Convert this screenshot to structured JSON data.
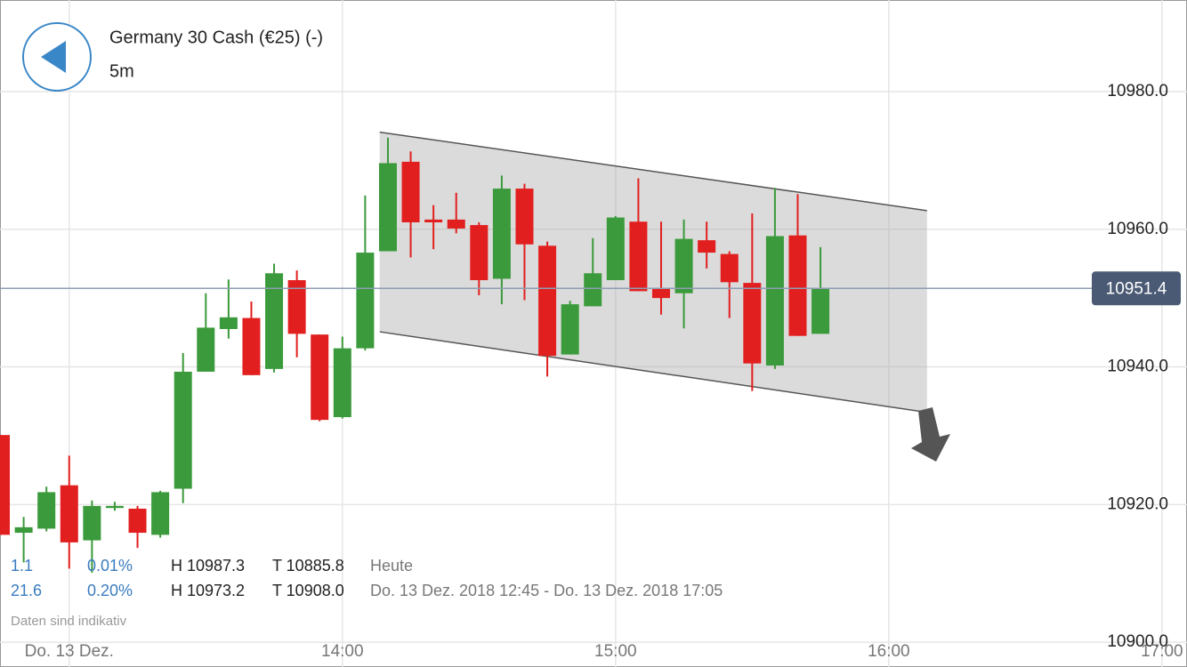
{
  "chart_data": {
    "type": "candlestick",
    "title": "Germany 30 Cash (€25) (-)",
    "subtitle": "5m",
    "x": [
      765,
      770,
      775,
      780,
      785,
      790,
      795,
      800,
      805,
      810,
      815,
      820,
      825,
      830,
      835,
      840,
      845,
      850,
      855,
      860,
      865,
      870,
      875,
      880,
      885,
      890,
      895,
      900,
      905,
      910,
      915,
      920,
      925,
      930,
      935,
      940,
      945
    ],
    "open": [
      10930.1,
      10915.9,
      10916.5,
      10922.8,
      10914.8,
      10919.5,
      10919.4,
      10915.6,
      10922.3,
      10939.3,
      10945.5,
      10947.1,
      10939.7,
      10952.6,
      10944.7,
      10932.7,
      10942.7,
      10956.8,
      10969.8,
      10961.4,
      10961.4,
      10960.6,
      10952.8,
      10965.9,
      10957.6,
      10941.8,
      10948.8,
      10952.6,
      10961.1,
      10951.5,
      10950.7,
      10958.4,
      10956.4,
      10952.2,
      10940.2,
      10959.1,
      10944.8
    ],
    "high": [
      10930.1,
      10918.2,
      10922.6,
      10927.1,
      10920.6,
      10920.4,
      10919.8,
      10922.0,
      10942.0,
      10950.7,
      10952.7,
      10949.5,
      10955.0,
      10954.0,
      10944.7,
      10944.4,
      10964.9,
      10973.3,
      10971.3,
      10963.5,
      10965.3,
      10961.0,
      10967.8,
      10966.6,
      10958.2,
      10949.6,
      10958.7,
      10961.9,
      10967.4,
      10961.1,
      10961.4,
      10961.1,
      10956.8,
      10962.3,
      10966.0,
      10965.1,
      10957.4
    ],
    "low": [
      10915.6,
      10911.6,
      10916.1,
      10910.7,
      10910.1,
      10919.1,
      10913.7,
      10915.2,
      10920.2,
      10939.3,
      10944.1,
      10938.8,
      10939.2,
      10941.4,
      10932.1,
      10932.5,
      10942.4,
      10956.8,
      10955.9,
      10957.1,
      10959.4,
      10950.4,
      10949.1,
      10949.7,
      10938.6,
      10941.8,
      10948.8,
      10952.6,
      10951.0,
      10947.6,
      10945.6,
      10954.3,
      10947.1,
      10936.5,
      10939.7,
      10944.5,
      10944.8
    ],
    "close": [
      10915.6,
      10916.7,
      10921.8,
      10914.5,
      10919.8,
      10919.8,
      10915.9,
      10921.8,
      10939.3,
      10945.7,
      10947.2,
      10938.8,
      10953.6,
      10944.8,
      10932.3,
      10942.7,
      10956.6,
      10969.6,
      10961.0,
      10961.0,
      10960.1,
      10952.6,
      10965.9,
      10957.8,
      10941.6,
      10949.1,
      10953.6,
      10961.7,
      10951.0,
      10950.0,
      10958.6,
      10956.6,
      10952.3,
      10940.5,
      10959.0,
      10944.5,
      10951.4
    ],
    "up_color": "#3b9a3b",
    "down_color": "#e21f1f",
    "xlim": [
      764.8,
      1025.5
    ],
    "ylim": [
      10896.4,
      10993.3
    ],
    "xticks": [
      {
        "value": 780,
        "label": "Do. 13 Dez."
      },
      {
        "value": 840,
        "label": "14:00"
      },
      {
        "value": 900,
        "label": "15:00"
      },
      {
        "value": 960,
        "label": "16:00"
      },
      {
        "value": 1020,
        "label": "17:00"
      }
    ],
    "yticks": [
      {
        "value": 10900,
        "label": "10900.0"
      },
      {
        "value": 10920,
        "label": "10920.0"
      },
      {
        "value": 10940,
        "label": "10940.0"
      },
      {
        "value": 10960,
        "label": "10960.0"
      },
      {
        "value": 10980,
        "label": "10980.0"
      }
    ],
    "grid": true,
    "last_price": 10951.4,
    "channel": {
      "upper": [
        [
          848.2,
          10974.1
        ],
        [
          968.4,
          10962.7
        ]
      ],
      "lower": [
        [
          848.2,
          10945.1
        ],
        [
          968.4,
          10933.4
        ]
      ]
    },
    "stats": [
      [
        "1.1",
        "0.01%",
        "H 10987.3",
        "T 10885.8",
        "Heute"
      ],
      [
        "21.6",
        "0.20%",
        "H 10973.2",
        "T 10908.0",
        "Do. 13 Dez. 2018 12:45 - Do. 13 Dez. 2018 17:05"
      ]
    ],
    "note": "Daten sind indikativ"
  }
}
